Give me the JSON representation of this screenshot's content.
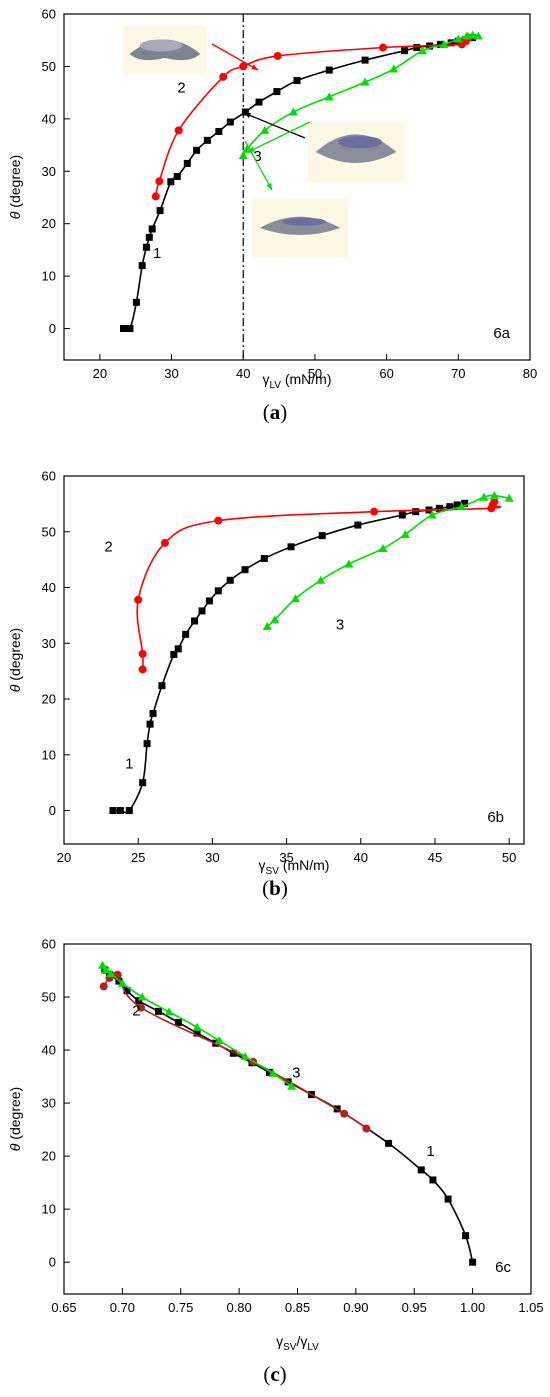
{
  "captions": {
    "a_open": "(",
    "a_letter": "a",
    "a_close": ")",
    "b_open": "(",
    "b_letter": "b",
    "b_close": ")",
    "c_open": "(",
    "c_letter": "c",
    "c_close": ")"
  },
  "colors": {
    "curve1": "#000000",
    "curve2": "#ff0000",
    "curve3": "#00dd00",
    "curve2c": "#b22222"
  },
  "chart_data": [
    {
      "id": "6a",
      "type": "scatter",
      "panel_label": "6a",
      "ylabel_symbol": "θ",
      "ylabel_text": " (degree)",
      "xlabel_symbol": "γ",
      "xlabel_sub": "LV",
      "xlabel_text": " (mN/m)",
      "xlim": [
        15,
        80
      ],
      "ylim": [
        -6,
        60
      ],
      "xticks": [
        20,
        30,
        40,
        50,
        60,
        70,
        80
      ],
      "yticks": [
        0,
        10,
        20,
        30,
        40,
        50,
        60
      ],
      "vline_x": 40,
      "series": [
        {
          "name": "1",
          "color": "#000000",
          "marker": "square",
          "x": [
            23.3,
            24.2,
            25.1,
            25.9,
            26.5,
            26.9,
            27.3,
            28.4,
            29.9,
            30.8,
            32.2,
            33.5,
            35.0,
            36.6,
            38.2,
            40.3,
            42.2,
            44.7,
            47.5,
            52.0,
            57.0,
            62.5,
            64.2,
            66.0,
            67.5,
            69.0,
            70.0,
            71.0,
            72.0
          ],
          "y": [
            0,
            0,
            5,
            12,
            15.5,
            17.4,
            19,
            22.5,
            28,
            29,
            31.5,
            34,
            35.9,
            37.6,
            39.4,
            41.3,
            43.2,
            45.2,
            47.3,
            49.3,
            51.2,
            53,
            53.6,
            53.9,
            54.2,
            54.5,
            54.8,
            55.1,
            55.5
          ]
        },
        {
          "name": "2",
          "color": "#ff0000",
          "marker": "circle",
          "x": [
            27.8,
            28.3,
            31.0,
            37.2,
            40.0,
            44.8,
            59.5,
            70.5,
            71.0,
            71.5
          ],
          "y": [
            25.2,
            28.1,
            37.8,
            48.0,
            50.0,
            52.0,
            53.6,
            54.2,
            54.8,
            55.5
          ]
        },
        {
          "name": "3",
          "color": "#00dd00",
          "marker": "triangle",
          "x": [
            40.0,
            40.5,
            43.0,
            47.0,
            52.0,
            57.0,
            61.0,
            65.0,
            68.0,
            70.0,
            71.2,
            72.0,
            72.8
          ],
          "y": [
            33.0,
            34.2,
            37.8,
            41.3,
            44.2,
            47.0,
            49.5,
            53.0,
            54.2,
            55.2,
            55.8,
            56.0,
            55.8
          ]
        }
      ],
      "curve_labels": [
        {
          "text": "1",
          "x": 28.0,
          "y": 13.5
        },
        {
          "text": "2",
          "x": 31.4,
          "y": 45.0
        },
        {
          "text": "3",
          "x": 42.0,
          "y": 32.0
        }
      ]
    },
    {
      "id": "6b",
      "type": "scatter",
      "panel_label": "6b",
      "ylabel_symbol": "θ",
      "ylabel_text": " (degree)",
      "xlabel_symbol": "γ",
      "xlabel_sub": "SV",
      "xlabel_text": " (mN/m)",
      "xlim": [
        20,
        51
      ],
      "ylim": [
        -6,
        60
      ],
      "xticks": [
        20,
        25,
        30,
        35,
        40,
        45,
        50
      ],
      "yticks": [
        0,
        10,
        20,
        30,
        40,
        50,
        60
      ],
      "series": [
        {
          "name": "1",
          "color": "#000000",
          "marker": "square",
          "x": [
            23.3,
            23.8,
            24.4,
            25.3,
            25.6,
            25.8,
            26.0,
            26.6,
            27.4,
            27.7,
            28.2,
            28.8,
            29.3,
            29.8,
            30.4,
            31.2,
            32.2,
            33.5,
            35.3,
            37.4,
            39.8,
            42.8,
            43.7,
            44.6,
            45.3,
            46.0,
            46.5,
            47.0
          ],
          "y": [
            0,
            0,
            0,
            5,
            12,
            15.5,
            17.4,
            22.4,
            28,
            29,
            31.6,
            34,
            35.8,
            37.6,
            39.4,
            41.3,
            43.2,
            45.2,
            47.3,
            49.3,
            51.2,
            53,
            53.6,
            53.9,
            54.2,
            54.5,
            54.8,
            55.1
          ]
        },
        {
          "name": "2",
          "color": "#ff0000",
          "marker": "circle",
          "x": [
            25.3,
            25.3,
            25.0,
            26.8,
            30.4,
            40.9,
            48.8,
            48.9,
            49.0
          ],
          "y": [
            25.3,
            28.1,
            37.8,
            48.0,
            52.0,
            53.6,
            54.2,
            54.8,
            55.4
          ]
        },
        {
          "name": "3",
          "color": "#00dd00",
          "marker": "triangle",
          "x": [
            33.7,
            34.2,
            35.6,
            37.3,
            39.2,
            41.5,
            43.0,
            44.8,
            46.8,
            48.3,
            49.0,
            50.0
          ],
          "y": [
            33.0,
            34.2,
            38.0,
            41.3,
            44.2,
            47.0,
            49.5,
            53.0,
            54.5,
            56.2,
            56.5,
            56.0
          ]
        }
      ],
      "curve_labels": [
        {
          "text": "2",
          "x": 23.0,
          "y": 46.5
        },
        {
          "text": "1",
          "x": 24.4,
          "y": 7.5
        },
        {
          "text": "3",
          "x": 38.6,
          "y": 32.5
        }
      ]
    },
    {
      "id": "6c",
      "type": "scatter",
      "panel_label": "6c",
      "ylabel_symbol": "θ",
      "ylabel_text": " (degree)",
      "xlabel_symbol": "γ",
      "xlabel_sub": "SV",
      "xlabel_sep": "/γ",
      "xlabel_sub2": "LV",
      "xlim": [
        0.65,
        1.05
      ],
      "ylim": [
        -6,
        60
      ],
      "xticks": [
        0.65,
        0.7,
        0.75,
        0.8,
        0.85,
        0.9,
        0.95,
        1.0,
        1.05
      ],
      "xtick_labels": [
        "0.65",
        "0.70",
        "0.75",
        "0.80",
        "0.85",
        "0.90",
        "0.95",
        "1.00",
        "1.05"
      ],
      "yticks": [
        0,
        10,
        20,
        30,
        40,
        50,
        60
      ],
      "series": [
        {
          "name": "1",
          "color": "#000000",
          "marker": "square",
          "x": [
            1.0,
            0.994,
            0.979,
            0.966,
            0.956,
            0.928,
            0.884,
            0.862,
            0.842,
            0.826,
            0.811,
            0.795,
            0.78,
            0.764,
            0.748,
            0.731,
            0.714,
            0.704,
            0.697,
            0.689,
            0.685
          ],
          "y": [
            0,
            5,
            11.9,
            15.5,
            17.4,
            22.4,
            28.9,
            31.6,
            34.0,
            35.8,
            37.6,
            39.4,
            41.3,
            43.2,
            45.2,
            47.3,
            49.3,
            51.2,
            53.0,
            54.2,
            55.1
          ]
        },
        {
          "name": "2",
          "color": "#b22222",
          "marker": "circle",
          "x": [
            0.909,
            0.89,
            0.812,
            0.716,
            0.696,
            0.689,
            0.684
          ],
          "y": [
            25.2,
            28.0,
            37.8,
            48.0,
            54.2,
            53.6,
            52.0
          ]
        },
        {
          "name": "3",
          "color": "#00dd00",
          "marker": "triangle",
          "x": [
            0.845,
            0.829,
            0.805,
            0.783,
            0.764,
            0.74,
            0.717,
            0.7,
            0.69,
            0.686,
            0.683
          ],
          "y": [
            33.2,
            35.6,
            38.8,
            41.8,
            44.3,
            47.2,
            50.0,
            52.6,
            54.4,
            55.2,
            56.0
          ]
        }
      ],
      "curve_labels": [
        {
          "text": "2",
          "x": 0.712,
          "y": 46.5
        },
        {
          "text": "3",
          "x": 0.849,
          "y": 34.8
        },
        {
          "text": "1",
          "x": 0.964,
          "y": 20.0
        }
      ]
    }
  ]
}
